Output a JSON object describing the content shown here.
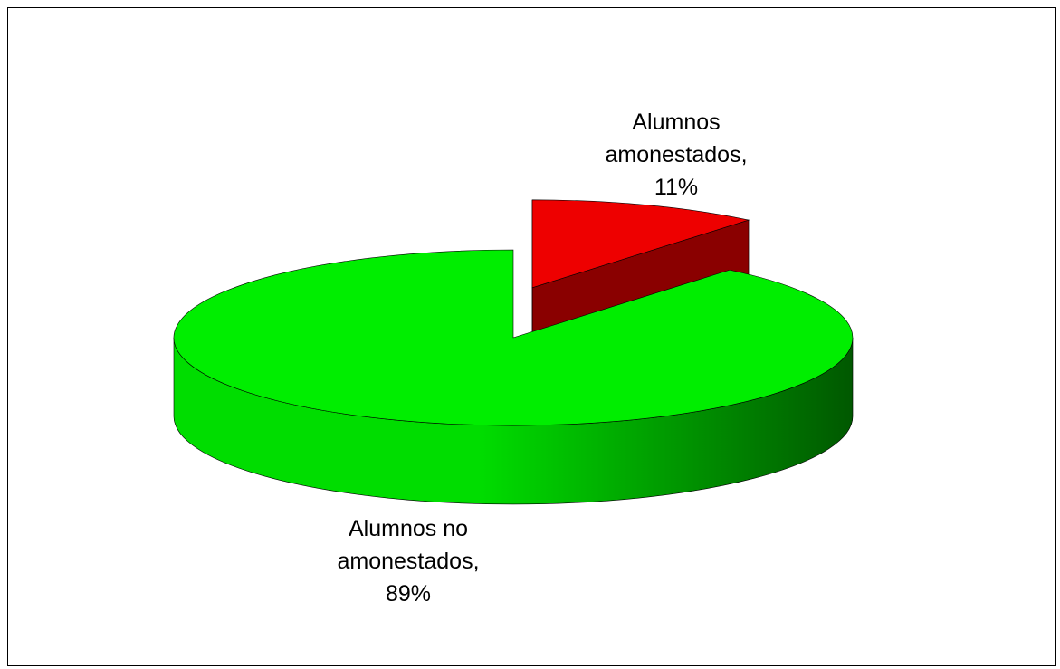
{
  "chart_data": {
    "type": "pie",
    "pie_style": "3d-exploded",
    "categories": [
      "Alumnos amonestados",
      "Alumnos no amonestados"
    ],
    "values": [
      11,
      89
    ],
    "unit": "%",
    "data_labels": [
      {
        "category": "Alumnos",
        "category_cont": "amonestados,",
        "value": "11%"
      },
      {
        "category": "Alumnos no",
        "category_cont": "amonestados,",
        "value": "89%"
      }
    ],
    "colors": {
      "amonestados_top": "#ee0000",
      "amonestados_side": "#8a0000",
      "no_amonestados_top": "#00ee00",
      "no_amonestados_side_light": "#00dd00",
      "no_amonestados_side_dark": "#005800"
    },
    "legend": "none",
    "border": true
  }
}
